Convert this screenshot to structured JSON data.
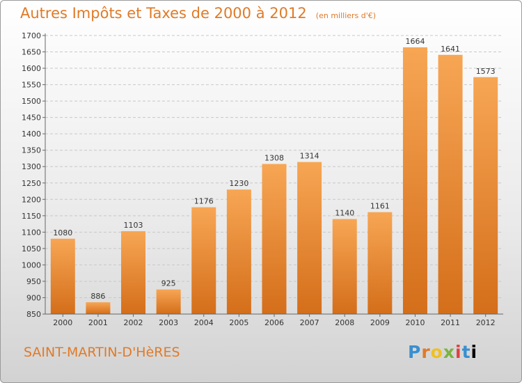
{
  "header": {
    "title": "Autres Impôts et Taxes de 2000 à 2012",
    "subtitle": "(en milliers d'€)"
  },
  "footer": {
    "town": "SAINT-MARTIN-D'HèRES",
    "brand": "Proxiti",
    "brand_letters": [
      "P",
      "r",
      "o",
      "x",
      "i",
      "t",
      "i"
    ]
  },
  "colors": {
    "bar_light": "#f7a654",
    "bar_dark": "#d46e1a",
    "accent": "#e07a28",
    "grid": "#c8c8c8"
  },
  "chart_data": {
    "type": "bar",
    "title": "Autres Impôts et Taxes de 2000 à 2012",
    "subtitle": "(en milliers d'€)",
    "categories": [
      "2000",
      "2001",
      "2002",
      "2003",
      "2004",
      "2005",
      "2006",
      "2007",
      "2008",
      "2009",
      "2010",
      "2011",
      "2012"
    ],
    "values": [
      1080,
      886,
      1103,
      925,
      1176,
      1230,
      1308,
      1314,
      1140,
      1161,
      1664,
      1641,
      1573
    ],
    "xlabel": "",
    "ylabel": "",
    "ylim": [
      850,
      1700
    ],
    "yticks": [
      850,
      900,
      950,
      1000,
      1050,
      1100,
      1150,
      1200,
      1250,
      1300,
      1350,
      1400,
      1450,
      1500,
      1550,
      1600,
      1650,
      1700
    ],
    "grid": true,
    "legend": "none"
  }
}
